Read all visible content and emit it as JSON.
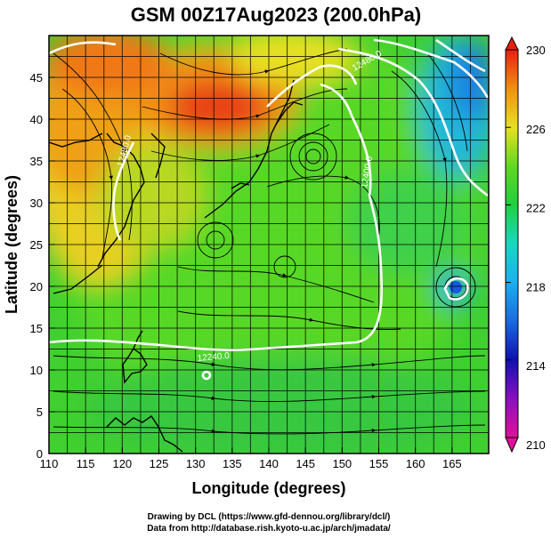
{
  "title": "GSM 00Z17Aug2023 (200.0hPa)",
  "xlabel": "Longitude (degrees)",
  "ylabel": "Latitude (degrees)",
  "x_ticks": [
    "110",
    "115",
    "120",
    "125",
    "130",
    "135",
    "140",
    "145",
    "150",
    "155",
    "160",
    "165"
  ],
  "y_ticks": [
    "0",
    "5",
    "10",
    "15",
    "20",
    "25",
    "30",
    "35",
    "40",
    "45"
  ],
  "colorbar": {
    "ticks": [
      "230",
      "226",
      "222",
      "218",
      "214",
      "210"
    ]
  },
  "contour_labels": [
    "12240.0",
    "12480.0",
    "12400.0",
    "12480.0"
  ],
  "credits": {
    "line1": "Drawing by DCL (https://www.gfd-dennou.org/library/dcl/)",
    "line2": "Data from http://database.rish.kyoto-u.ac.jp/arch/jmadata/"
  },
  "chart_data": {
    "type": "heatmap",
    "x_range": [
      110,
      170
    ],
    "y_range": [
      0,
      50
    ],
    "color_range": [
      210,
      230
    ],
    "colorscale": [
      "#e0109a",
      "#1010b0",
      "#1a8fe8",
      "#18c8c8",
      "#20d040",
      "#50d020",
      "#e8e020",
      "#f0a010",
      "#e83010"
    ],
    "grid": true,
    "overlays": [
      "streamlines",
      "white height contours",
      "coastlines"
    ]
  }
}
